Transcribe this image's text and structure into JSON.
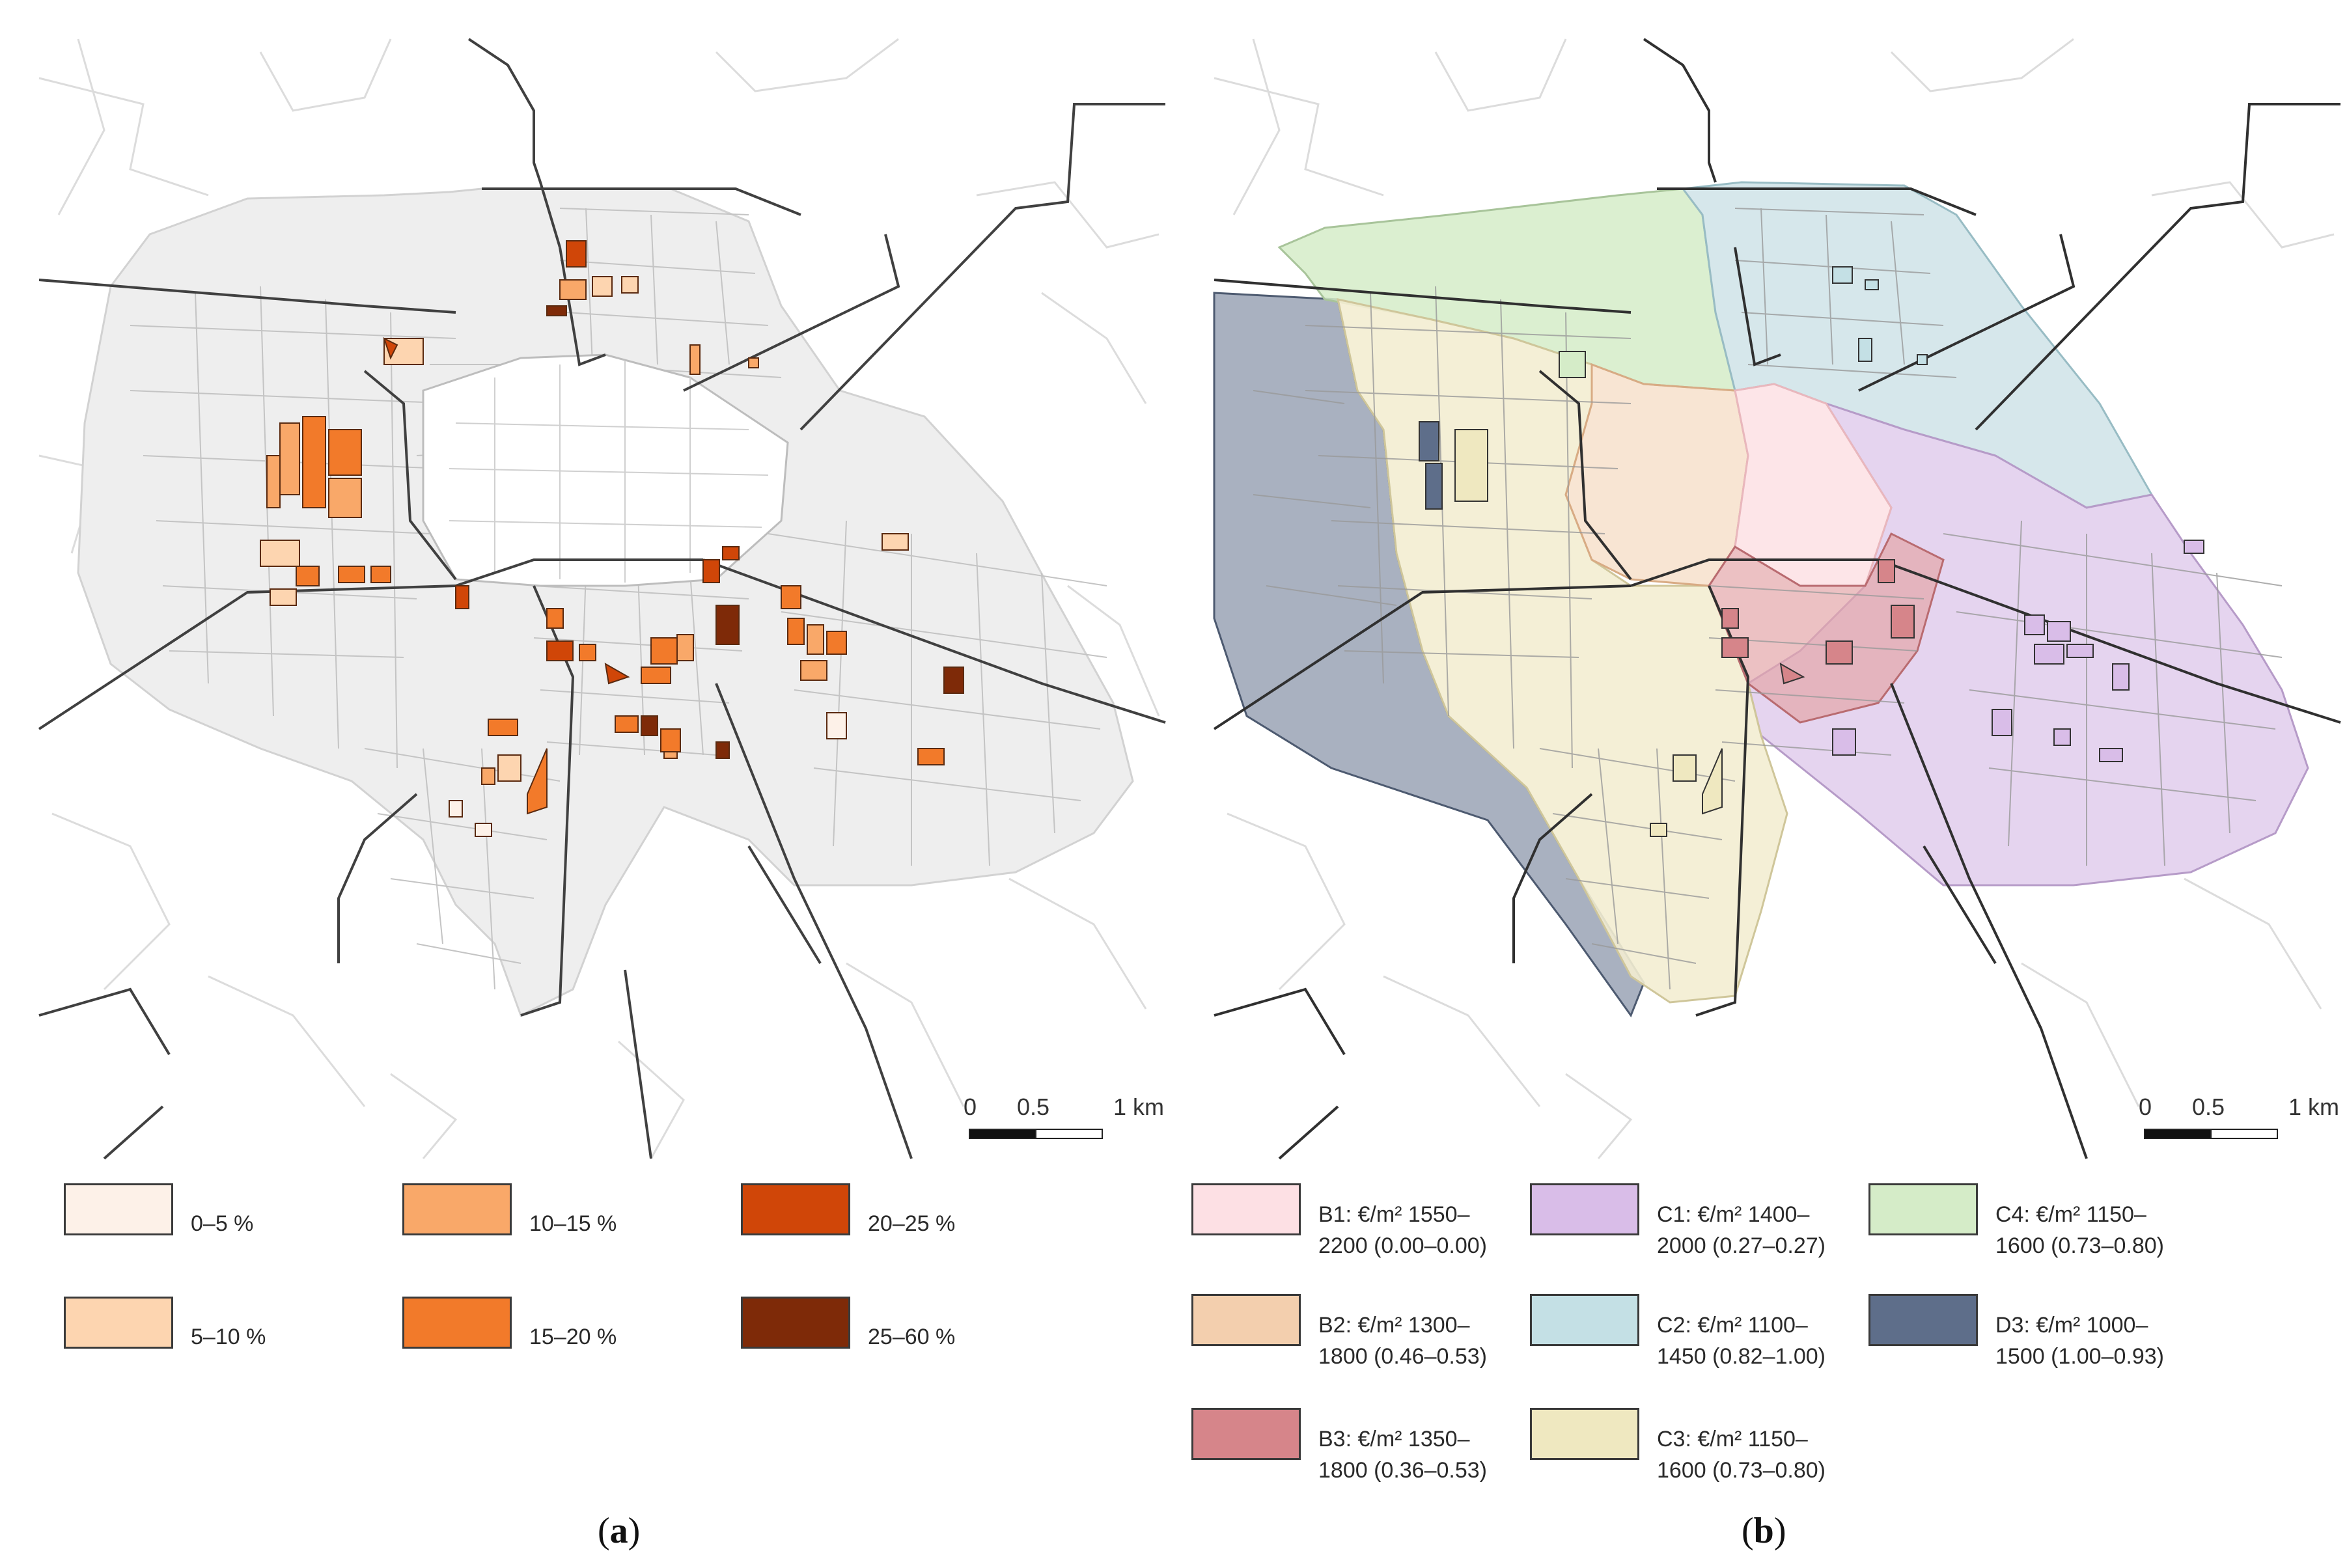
{
  "panel_a": {
    "caption_open": "(",
    "caption_letter": "a",
    "caption_close": ")",
    "scale": {
      "tick0": "0",
      "tick1": "0.5",
      "tick2": "1 km"
    },
    "legend": [
      {
        "label": "0–5 %",
        "color": "#fdf1e8"
      },
      {
        "label": "10–15 %",
        "color": "#f9a869"
      },
      {
        "label": "20–25 %",
        "color": "#d04608"
      },
      {
        "label": "5–10 %",
        "color": "#fdd5b0"
      },
      {
        "label": "15–20 %",
        "color": "#f27a2a"
      },
      {
        "label": "25–60 %",
        "color": "#7e2a08"
      }
    ]
  },
  "panel_b": {
    "caption_open": "(",
    "caption_letter": "b",
    "caption_close": ")",
    "scale": {
      "tick0": "0",
      "tick1": "0.5",
      "tick2": "1 km"
    },
    "legend": [
      {
        "line1": "B1: €/m² 1550–",
        "line2": "2200 (0.00–0.00)",
        "color": "#fde0e4"
      },
      {
        "line1": "C1: €/m² 1400–",
        "line2": "2000 (0.27–0.27)",
        "color": "#d9bde8"
      },
      {
        "line1": "C4: €/m² 1150–",
        "line2": "1600 (0.73–0.80)",
        "color": "#d5ecc8"
      },
      {
        "line1": "B2: €/m² 1300–",
        "line2": "1800 (0.46–0.53)",
        "color": "#f3cfae"
      },
      {
        "line1": "C2: €/m² 1100–",
        "line2": "1450 (0.82–1.00)",
        "color": "#c4e0e5"
      },
      {
        "line1": "D3: €/m² 1000–",
        "line2": "1500 (1.00–0.93)",
        "color": "#5e6e8a"
      },
      {
        "line1": "B3: €/m² 1350–",
        "line2": "1800 (0.36–0.53)",
        "color": "#d6858a"
      },
      {
        "line1": "C3: €/m² 1150–",
        "line2": "1600 (0.73–0.80)",
        "color": "#efe8c0"
      }
    ]
  }
}
